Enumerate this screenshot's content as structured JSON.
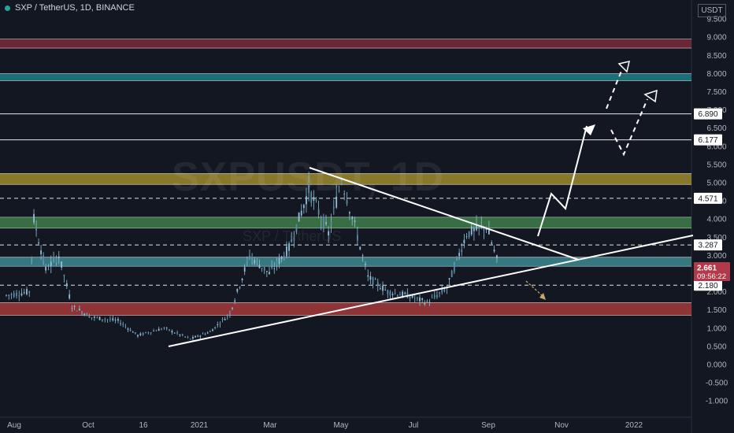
{
  "header": {
    "symbol": "SXP / TetherUS, 1D, BINANCE"
  },
  "watermark": {
    "ticker": "SXPUSDT, 1D",
    "subtitle": "SXP / TetherUS"
  },
  "price_scale_unit": "USDT",
  "colors": {
    "background": "#131722",
    "candle_body": "#8fc0d8",
    "trend_lines": "#ffffff",
    "zone_red_top": "#7a2a3a",
    "zone_teal_top": "#1f7f86",
    "zone_yellow": "#9c8a2c",
    "zone_green": "#3f7e4a",
    "zone_teal_mid": "#3d8a91",
    "zone_red_bottom": "#a63a3a",
    "last_price_bg": "#b2394a",
    "projection_arrow": "#c8a86a"
  },
  "chart_data": {
    "type": "candlestick",
    "title": "SXP / TetherUS, 1D, BINANCE",
    "yaxis": {
      "min": -1.2,
      "max": 10,
      "ticks": [
        "9.500",
        "9.000",
        "8.500",
        "8.000",
        "7.500",
        "7.000",
        "6.500",
        "6.000",
        "5.500",
        "5.000",
        "4.500",
        "4.000",
        "3.500",
        "3.000",
        "2.500",
        "2.000",
        "1.500",
        "1.000",
        "0.500",
        "0.000",
        "-0.500",
        "-1.000"
      ]
    },
    "xaxis": {
      "labels": [
        "Aug",
        "Oct",
        "16",
        "2021",
        "Mar",
        "May",
        "Jul",
        "Sep",
        "Nov",
        "2022"
      ]
    },
    "price_points": [
      {
        "t": 0,
        "v": 1.9
      },
      {
        "t": 0.035,
        "v": 2.0
      },
      {
        "t": 0.042,
        "v": 4.0
      },
      {
        "t": 0.06,
        "v": 2.6
      },
      {
        "t": 0.08,
        "v": 3.0
      },
      {
        "t": 0.1,
        "v": 1.6
      },
      {
        "t": 0.13,
        "v": 1.3
      },
      {
        "t": 0.17,
        "v": 1.2
      },
      {
        "t": 0.2,
        "v": 0.8
      },
      {
        "t": 0.24,
        "v": 1.0
      },
      {
        "t": 0.28,
        "v": 0.7
      },
      {
        "t": 0.31,
        "v": 0.9
      },
      {
        "t": 0.34,
        "v": 1.4
      },
      {
        "t": 0.37,
        "v": 3.0
      },
      {
        "t": 0.4,
        "v": 2.5
      },
      {
        "t": 0.43,
        "v": 3.2
      },
      {
        "t": 0.46,
        "v": 4.8
      },
      {
        "t": 0.49,
        "v": 3.6
      },
      {
        "t": 0.51,
        "v": 5.1
      },
      {
        "t": 0.53,
        "v": 3.8
      },
      {
        "t": 0.55,
        "v": 2.4
      },
      {
        "t": 0.58,
        "v": 2.0
      },
      {
        "t": 0.61,
        "v": 1.9
      },
      {
        "t": 0.64,
        "v": 1.7
      },
      {
        "t": 0.67,
        "v": 2.1
      },
      {
        "t": 0.7,
        "v": 3.6
      },
      {
        "t": 0.73,
        "v": 3.8
      },
      {
        "t": 0.75,
        "v": 2.66
      }
    ],
    "horizontal_levels": [
      {
        "price": 6.89,
        "label": "6.890",
        "style": "solid"
      },
      {
        "price": 6.177,
        "label": "6.177",
        "style": "solid"
      },
      {
        "price": 4.571,
        "label": "4.571",
        "style": "dashed"
      },
      {
        "price": 3.287,
        "label": "3.287",
        "style": "dashed"
      },
      {
        "price": 2.18,
        "label": "2.180",
        "style": "dashed"
      }
    ],
    "zones": [
      {
        "from": 8.7,
        "to": 8.95,
        "color": "zone_red_top"
      },
      {
        "from": 7.8,
        "to": 8.0,
        "color": "zone_teal_top"
      },
      {
        "from": 4.95,
        "to": 5.25,
        "color": "zone_yellow"
      },
      {
        "from": 3.75,
        "to": 4.05,
        "color": "zone_green"
      },
      {
        "from": 2.7,
        "to": 2.95,
        "color": "zone_teal_mid"
      },
      {
        "from": 1.35,
        "to": 1.7,
        "color": "zone_red_bottom"
      }
    ],
    "last_price": {
      "value": "2.661",
      "countdown": "09:56:22"
    }
  }
}
